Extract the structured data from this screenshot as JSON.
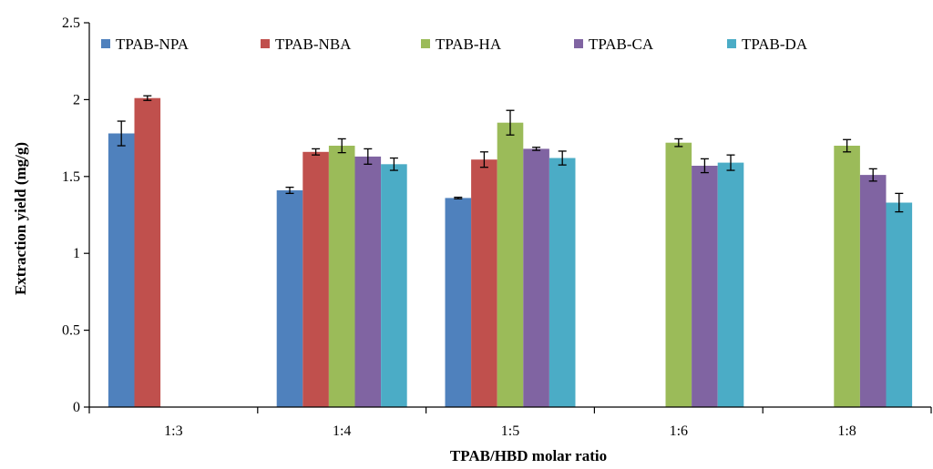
{
  "chart_data": {
    "type": "bar",
    "title": "",
    "xlabel": "TPAB/HBD molar ratio",
    "ylabel": "Extraction yield (mg/g)",
    "ylim": [
      0,
      2.5
    ],
    "yticks": [
      "0",
      "0.5",
      "1",
      "1.5",
      "2",
      "2.5"
    ],
    "categories": [
      "1:3",
      "1:4",
      "1:5",
      "1:6",
      "1:8"
    ],
    "legend_position": "top",
    "grid": false,
    "series": [
      {
        "name": "TPAB-NPA",
        "color": "#4f81bd",
        "values": [
          1.78,
          1.41,
          1.36,
          null,
          null
        ],
        "errors": [
          0.08,
          0.02,
          0.005,
          null,
          null
        ]
      },
      {
        "name": "TPAB-NBA",
        "color": "#c0504d",
        "values": [
          2.01,
          1.66,
          1.61,
          null,
          null
        ],
        "errors": [
          0.015,
          0.02,
          0.05,
          null,
          null
        ]
      },
      {
        "name": "TPAB-HA",
        "color": "#9bbb59",
        "values": [
          null,
          1.7,
          1.85,
          1.72,
          1.7
        ],
        "errors": [
          null,
          0.045,
          0.08,
          0.025,
          0.04
        ]
      },
      {
        "name": "TPAB-CA",
        "color": "#8064a2",
        "values": [
          null,
          1.63,
          1.68,
          1.57,
          1.51
        ],
        "errors": [
          null,
          0.05,
          0.01,
          0.045,
          0.04
        ]
      },
      {
        "name": "TPAB-DA",
        "color": "#4bacc6",
        "values": [
          null,
          1.58,
          1.62,
          1.59,
          1.33
        ],
        "errors": [
          null,
          0.04,
          0.045,
          0.05,
          0.06
        ]
      }
    ]
  }
}
